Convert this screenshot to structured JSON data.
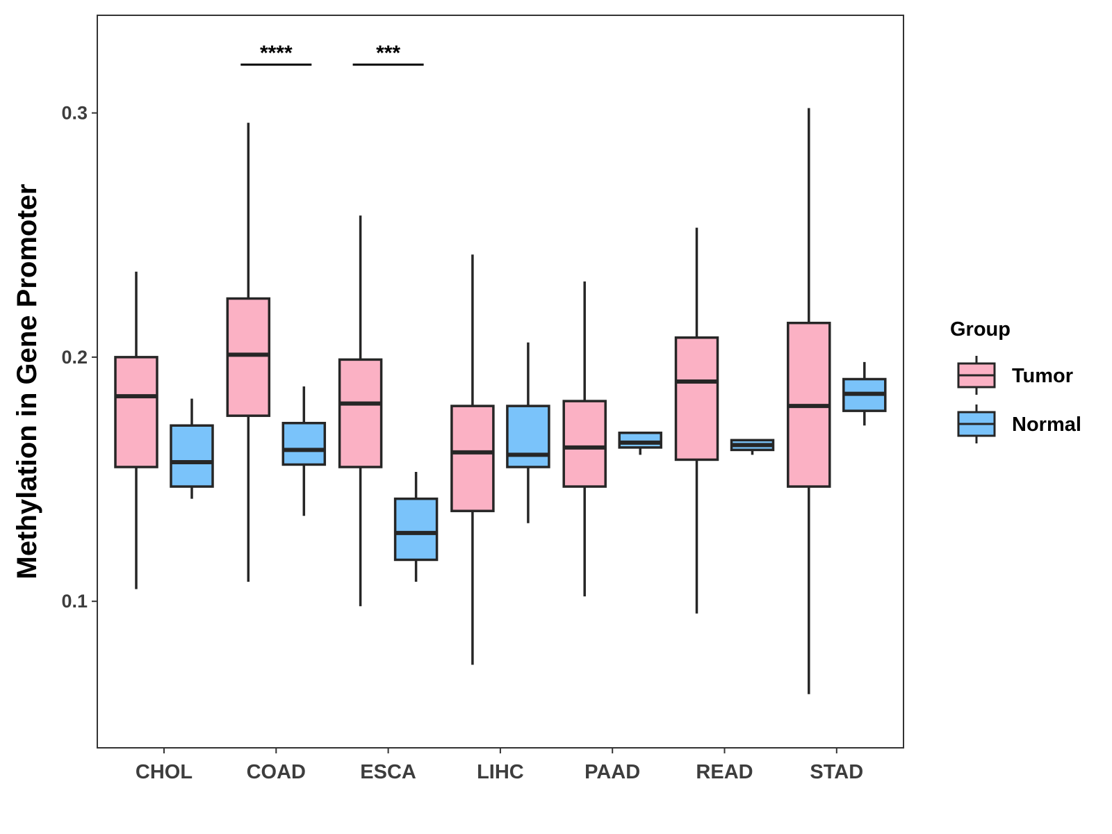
{
  "chart_data": {
    "type": "boxplot",
    "title": "",
    "xlabel": "",
    "ylabel": "Methylation in Gene Promoter",
    "ylim": [
      0.04,
      0.34
    ],
    "yticks": [
      0.1,
      0.2,
      0.3
    ],
    "ytick_labels": [
      "0.1",
      "0.2",
      "0.3"
    ],
    "categories": [
      "CHOL",
      "COAD",
      "ESCA",
      "LIHC",
      "PAAD",
      "READ",
      "STAD"
    ],
    "legend": {
      "title": "Group",
      "position": "right",
      "entries": [
        {
          "name": "Tumor",
          "color": "#FBB1C4"
        },
        {
          "name": "Normal",
          "color": "#7AC3FA"
        }
      ]
    },
    "series": [
      {
        "name": "Tumor",
        "color": "#FBB1C4",
        "boxes": [
          {
            "category": "CHOL",
            "min": 0.105,
            "q1": 0.155,
            "median": 0.184,
            "q3": 0.2,
            "max": 0.235
          },
          {
            "category": "COAD",
            "min": 0.108,
            "q1": 0.176,
            "median": 0.201,
            "q3": 0.224,
            "max": 0.296
          },
          {
            "category": "ESCA",
            "min": 0.098,
            "q1": 0.155,
            "median": 0.181,
            "q3": 0.199,
            "max": 0.258
          },
          {
            "category": "LIHC",
            "min": 0.074,
            "q1": 0.137,
            "median": 0.161,
            "q3": 0.18,
            "max": 0.242
          },
          {
            "category": "PAAD",
            "min": 0.102,
            "q1": 0.147,
            "median": 0.163,
            "q3": 0.182,
            "max": 0.231
          },
          {
            "category": "READ",
            "min": 0.095,
            "q1": 0.158,
            "median": 0.19,
            "q3": 0.208,
            "max": 0.253
          },
          {
            "category": "STAD",
            "min": 0.062,
            "q1": 0.147,
            "median": 0.18,
            "q3": 0.214,
            "max": 0.302
          }
        ]
      },
      {
        "name": "Normal",
        "color": "#7AC3FA",
        "boxes": [
          {
            "category": "CHOL",
            "min": 0.142,
            "q1": 0.147,
            "median": 0.157,
            "q3": 0.172,
            "max": 0.183
          },
          {
            "category": "COAD",
            "min": 0.135,
            "q1": 0.156,
            "median": 0.162,
            "q3": 0.173,
            "max": 0.188
          },
          {
            "category": "ESCA",
            "min": 0.108,
            "q1": 0.117,
            "median": 0.128,
            "q3": 0.142,
            "max": 0.153
          },
          {
            "category": "LIHC",
            "min": 0.132,
            "q1": 0.155,
            "median": 0.16,
            "q3": 0.18,
            "max": 0.206
          },
          {
            "category": "PAAD",
            "min": 0.16,
            "q1": 0.163,
            "median": 0.165,
            "q3": 0.169,
            "max": 0.169
          },
          {
            "category": "READ",
            "min": 0.16,
            "q1": 0.162,
            "median": 0.164,
            "q3": 0.166,
            "max": 0.166
          },
          {
            "category": "STAD",
            "min": 0.172,
            "q1": 0.178,
            "median": 0.185,
            "q3": 0.191,
            "max": 0.198
          }
        ]
      }
    ],
    "significance": [
      {
        "category": "COAD",
        "label": "****"
      },
      {
        "category": "ESCA",
        "label": "***"
      }
    ]
  }
}
